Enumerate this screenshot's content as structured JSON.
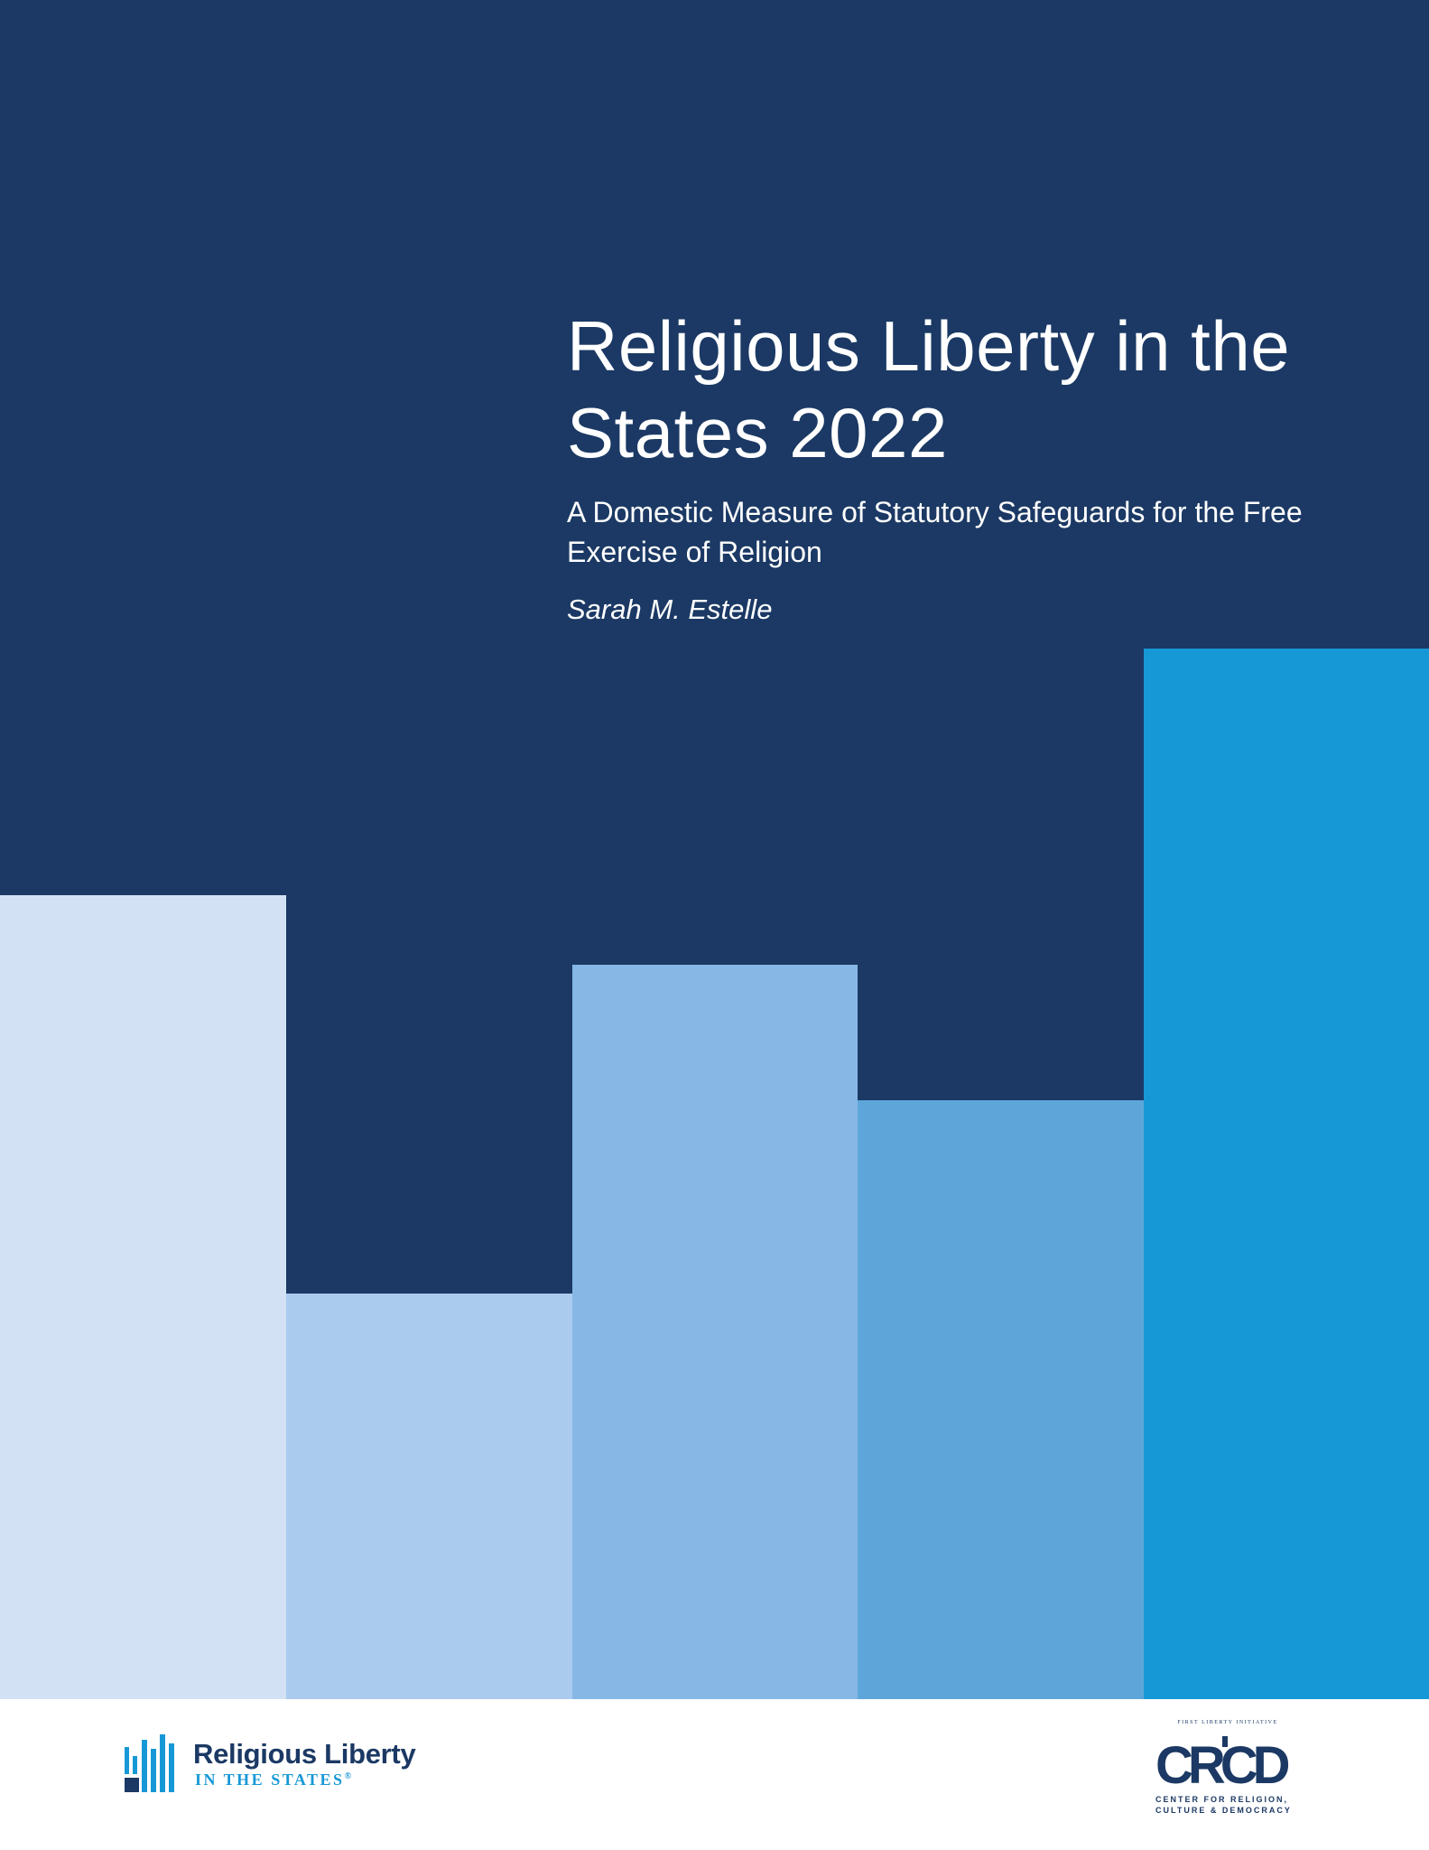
{
  "cover": {
    "title": "Religious Liberty in the States 2022",
    "subtitle": "A Domestic Measure of Statutory Safeguards for the Free Exercise of Religion",
    "author": "Sarah M. Estelle"
  },
  "colors": {
    "background": "#1b3964",
    "bars": [
      "#d2e2f4",
      "#abcbee",
      "#86b7e5",
      "#5ea6da",
      "#1798d6"
    ]
  },
  "logos": {
    "religious_liberty": {
      "name": "Religious Liberty",
      "tagline": "IN THE STATES",
      "registered_mark": "®"
    },
    "crcd": {
      "top_text": "FIRST LIBERTY INITIATIVE",
      "letters": "CRCD",
      "caption_line1": "CENTER FOR RELIGION,",
      "caption_line2": "CULTURE & DEMOCRACY"
    }
  }
}
